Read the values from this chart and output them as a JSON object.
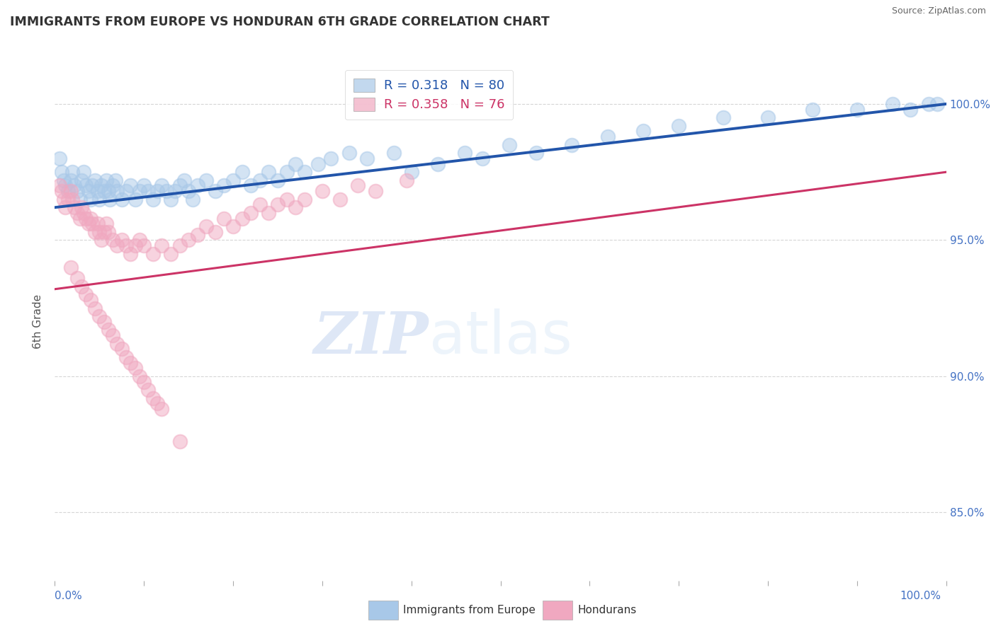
{
  "title": "IMMIGRANTS FROM EUROPE VS HONDURAN 6TH GRADE CORRELATION CHART",
  "source": "Source: ZipAtlas.com",
  "ylabel": "6th Grade",
  "y_tick_vals": [
    0.85,
    0.9,
    0.95,
    1.0
  ],
  "y_tick_labels": [
    "85.0%",
    "90.0%",
    "95.0%",
    "100.0%"
  ],
  "xlim": [
    0.0,
    1.0
  ],
  "ylim": [
    0.825,
    1.015
  ],
  "blue_R": 0.318,
  "blue_N": 80,
  "pink_R": 0.358,
  "pink_N": 76,
  "blue_color": "#a8c8e8",
  "pink_color": "#f0a8c0",
  "blue_line_color": "#2255aa",
  "pink_line_color": "#cc3366",
  "watermark_ZIP": "ZIP",
  "watermark_atlas": "atlas",
  "legend_label_blue": "Immigrants from Europe",
  "legend_label_pink": "Hondurans",
  "blue_x": [
    0.005,
    0.008,
    0.01,
    0.012,
    0.015,
    0.018,
    0.02,
    0.022,
    0.025,
    0.028,
    0.03,
    0.032,
    0.035,
    0.038,
    0.04,
    0.042,
    0.045,
    0.048,
    0.05,
    0.052,
    0.055,
    0.058,
    0.06,
    0.062,
    0.065,
    0.068,
    0.07,
    0.075,
    0.08,
    0.085,
    0.09,
    0.095,
    0.1,
    0.105,
    0.11,
    0.115,
    0.12,
    0.125,
    0.13,
    0.135,
    0.14,
    0.145,
    0.15,
    0.155,
    0.16,
    0.17,
    0.18,
    0.19,
    0.2,
    0.21,
    0.22,
    0.23,
    0.24,
    0.25,
    0.26,
    0.27,
    0.28,
    0.295,
    0.31,
    0.33,
    0.35,
    0.38,
    0.4,
    0.43,
    0.46,
    0.48,
    0.51,
    0.54,
    0.58,
    0.62,
    0.66,
    0.7,
    0.75,
    0.8,
    0.85,
    0.9,
    0.94,
    0.96,
    0.98,
    0.99
  ],
  "blue_y": [
    0.98,
    0.975,
    0.972,
    0.97,
    0.968,
    0.972,
    0.975,
    0.97,
    0.968,
    0.965,
    0.972,
    0.975,
    0.97,
    0.968,
    0.965,
    0.97,
    0.972,
    0.968,
    0.965,
    0.97,
    0.968,
    0.972,
    0.968,
    0.965,
    0.97,
    0.972,
    0.968,
    0.965,
    0.968,
    0.97,
    0.965,
    0.968,
    0.97,
    0.968,
    0.965,
    0.968,
    0.97,
    0.968,
    0.965,
    0.968,
    0.97,
    0.972,
    0.968,
    0.965,
    0.97,
    0.972,
    0.968,
    0.97,
    0.972,
    0.975,
    0.97,
    0.972,
    0.975,
    0.972,
    0.975,
    0.978,
    0.975,
    0.978,
    0.98,
    0.982,
    0.98,
    0.982,
    0.975,
    0.978,
    0.982,
    0.98,
    0.985,
    0.982,
    0.985,
    0.988,
    0.99,
    0.992,
    0.995,
    0.995,
    0.998,
    0.998,
    1.0,
    0.998,
    1.0,
    1.0
  ],
  "pink_x": [
    0.005,
    0.008,
    0.01,
    0.012,
    0.015,
    0.018,
    0.02,
    0.022,
    0.025,
    0.028,
    0.03,
    0.032,
    0.035,
    0.038,
    0.04,
    0.042,
    0.045,
    0.048,
    0.05,
    0.052,
    0.055,
    0.058,
    0.06,
    0.065,
    0.07,
    0.075,
    0.08,
    0.085,
    0.09,
    0.095,
    0.1,
    0.11,
    0.12,
    0.13,
    0.14,
    0.15,
    0.16,
    0.17,
    0.18,
    0.19,
    0.2,
    0.21,
    0.22,
    0.23,
    0.24,
    0.25,
    0.26,
    0.27,
    0.28,
    0.3,
    0.32,
    0.34,
    0.36,
    0.395,
    0.018,
    0.025,
    0.03,
    0.035,
    0.04,
    0.045,
    0.05,
    0.055,
    0.06,
    0.065,
    0.07,
    0.075,
    0.08,
    0.085,
    0.09,
    0.095,
    0.1,
    0.105,
    0.11,
    0.115,
    0.12,
    0.14
  ],
  "pink_y": [
    0.97,
    0.968,
    0.965,
    0.962,
    0.965,
    0.968,
    0.965,
    0.962,
    0.96,
    0.958,
    0.962,
    0.96,
    0.958,
    0.956,
    0.958,
    0.956,
    0.953,
    0.956,
    0.953,
    0.95,
    0.953,
    0.956,
    0.953,
    0.95,
    0.948,
    0.95,
    0.948,
    0.945,
    0.948,
    0.95,
    0.948,
    0.945,
    0.948,
    0.945,
    0.948,
    0.95,
    0.952,
    0.955,
    0.953,
    0.958,
    0.955,
    0.958,
    0.96,
    0.963,
    0.96,
    0.963,
    0.965,
    0.962,
    0.965,
    0.968,
    0.965,
    0.97,
    0.968,
    0.972,
    0.94,
    0.936,
    0.933,
    0.93,
    0.928,
    0.925,
    0.922,
    0.92,
    0.917,
    0.915,
    0.912,
    0.91,
    0.907,
    0.905,
    0.903,
    0.9,
    0.898,
    0.895,
    0.892,
    0.89,
    0.888,
    0.876
  ],
  "blue_line_x": [
    0.0,
    1.0
  ],
  "blue_line_y": [
    0.962,
    1.0
  ],
  "pink_line_x": [
    0.0,
    1.0
  ],
  "pink_line_y": [
    0.932,
    0.975
  ]
}
